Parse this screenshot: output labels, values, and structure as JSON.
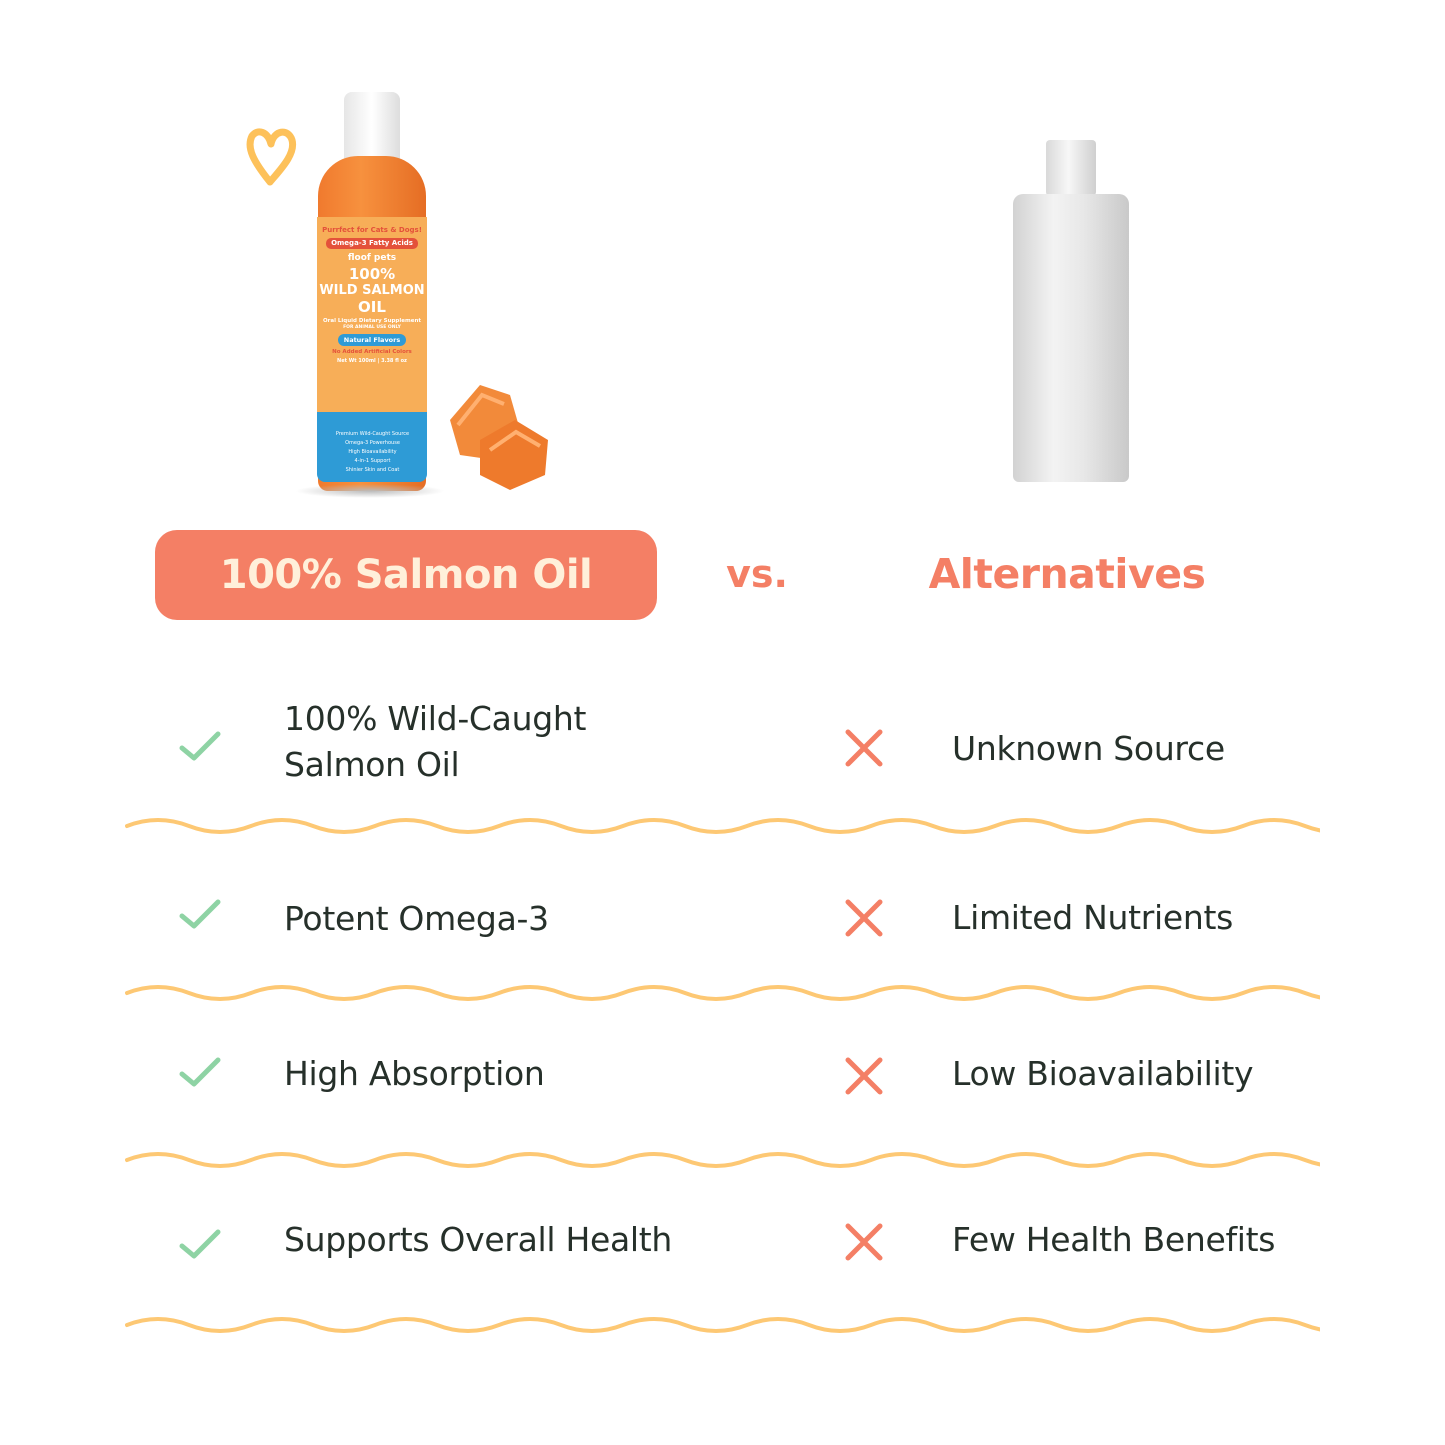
{
  "product": {
    "label": {
      "tagline": "Purrfect for Cats & Dogs!",
      "badge": "Omega-3 Fatty Acids",
      "brand": "floof pets",
      "name_line1": "100%",
      "name_line2": "WILD SALMON",
      "name_line3": "OIL",
      "subtitle": "Oral Liquid Dietary Supplement",
      "use": "FOR ANIMAL USE ONLY",
      "flavor": "Natural Flavors",
      "colors_note": "No Added Artificial Colors",
      "net_wt": "Net Wt 100ml | 3.38 fl oz",
      "features": [
        "Premium Wild-Caught Source",
        "Omega-3 Powerhouse",
        "High Bioavailability",
        "4-in-1 Support",
        "Shinier Skin and Coat"
      ]
    }
  },
  "header": {
    "left_title": "100% Salmon Oil",
    "vs": "vs.",
    "right_title": "Alternatives"
  },
  "colors": {
    "accent": "#F47F65",
    "check": "#8ED3A4",
    "cross": "#F47F65",
    "wave": "#FDC874",
    "text": "#26302a"
  },
  "rows": [
    {
      "pro_line1": "100% Wild-Caught",
      "pro_line2": "Salmon Oil",
      "con": "Unknown Source"
    },
    {
      "pro_line1": "Potent Omega-3",
      "con": "Limited Nutrients"
    },
    {
      "pro_line1": "High Absorption",
      "con": "Low Bioavailability"
    },
    {
      "pro_line1": "Supports Overall Health",
      "con": "Few Health Benefits"
    }
  ]
}
